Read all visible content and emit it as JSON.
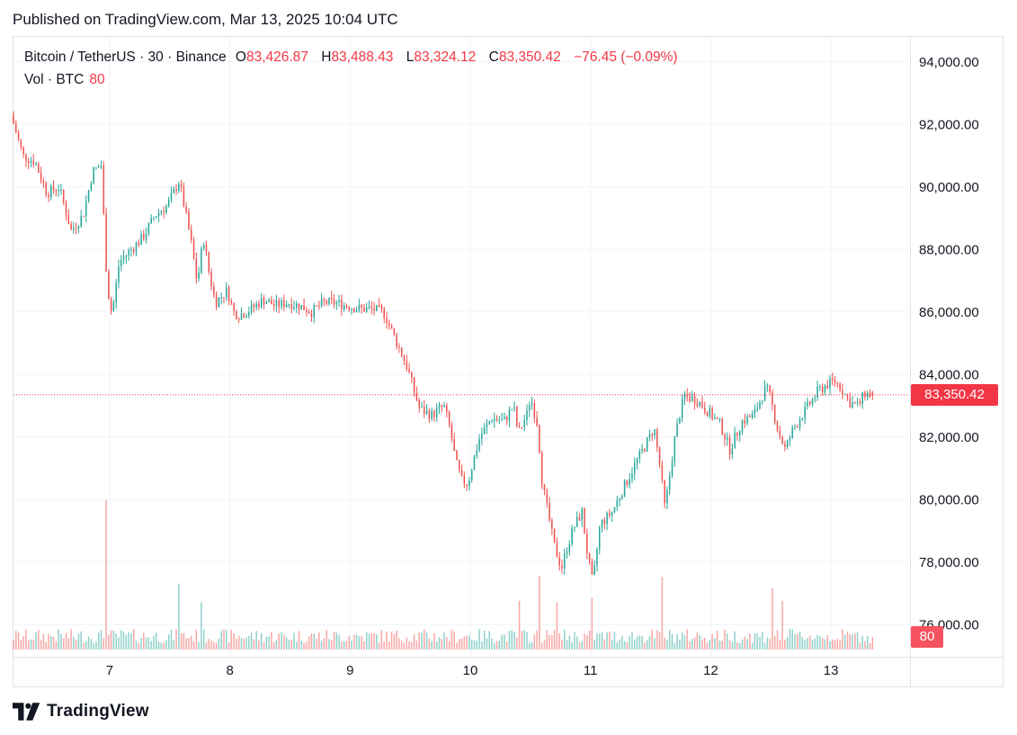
{
  "header": {
    "published": "Published on TradingView.com, Mar 13, 2025 10:04 UTC"
  },
  "legend": {
    "symbol": "Bitcoin / TetherUS · 30 · Binance",
    "o_label": "O",
    "o_value": "83,426.87",
    "h_label": "H",
    "h_value": "83,488.43",
    "l_label": "L",
    "l_value": "83,324.12",
    "c_label": "C",
    "c_value": "83,350.42",
    "change": "−76.45 (−0.09%)",
    "vol_label": "Vol · BTC",
    "vol_value": "80"
  },
  "badges": {
    "last_price": "83,350.42",
    "last_volume": "80"
  },
  "footer": {
    "brand": "TradingView"
  },
  "colors": {
    "up": "#26a69a",
    "down": "#ef5350",
    "last_price": "#f23645",
    "grid": "#f0f3fa"
  },
  "chart_data": {
    "type": "candlestick",
    "symbol": "Bitcoin / TetherUS",
    "interval": "30",
    "exchange": "Binance",
    "y_ticks": [
      76000,
      78000,
      80000,
      82000,
      84000,
      86000,
      88000,
      90000,
      92000,
      94000
    ],
    "y_tick_labels": [
      "76,000.00",
      "78,000.00",
      "80,000.00",
      "82,000.00",
      "84,000.00",
      "86,000.00",
      "88,000.00",
      "90,000.00",
      "92,000.00",
      "94,000.00"
    ],
    "ylim": [
      75000,
      94800
    ],
    "x_labels": [
      "7",
      "8",
      "9",
      "10",
      "11",
      "12",
      "13"
    ],
    "x_label_days": [
      7,
      8,
      9,
      10,
      11,
      12,
      13
    ],
    "x_range_days": [
      6.2,
      13.65
    ],
    "close_path": [
      [
        6.2,
        92300
      ],
      [
        6.3,
        91000
      ],
      [
        6.4,
        90800
      ],
      [
        6.5,
        89800
      ],
      [
        6.6,
        90000
      ],
      [
        6.7,
        88600
      ],
      [
        6.8,
        89100
      ],
      [
        6.88,
        90500
      ],
      [
        6.95,
        90700
      ],
      [
        7.0,
        86800
      ],
      [
        7.04,
        85900
      ],
      [
        7.1,
        87600
      ],
      [
        7.2,
        88000
      ],
      [
        7.3,
        88400
      ],
      [
        7.4,
        89100
      ],
      [
        7.5,
        89400
      ],
      [
        7.6,
        90200
      ],
      [
        7.66,
        89000
      ],
      [
        7.7,
        88200
      ],
      [
        7.75,
        86900
      ],
      [
        7.8,
        88400
      ],
      [
        7.85,
        87200
      ],
      [
        7.9,
        86300
      ],
      [
        8.0,
        86700
      ],
      [
        8.05,
        86000
      ],
      [
        8.1,
        85900
      ],
      [
        8.2,
        86100
      ],
      [
        8.3,
        86400
      ],
      [
        8.4,
        86200
      ],
      [
        8.5,
        86300
      ],
      [
        8.6,
        86200
      ],
      [
        8.7,
        86000
      ],
      [
        8.8,
        86300
      ],
      [
        8.9,
        86300
      ],
      [
        9.0,
        86200
      ],
      [
        9.1,
        86100
      ],
      [
        9.2,
        86100
      ],
      [
        9.3,
        86000
      ],
      [
        9.4,
        85100
      ],
      [
        9.5,
        84200
      ],
      [
        9.55,
        83500
      ],
      [
        9.6,
        82900
      ],
      [
        9.7,
        82700
      ],
      [
        9.8,
        83000
      ],
      [
        9.85,
        82300
      ],
      [
        9.9,
        81200
      ],
      [
        9.95,
        80600
      ],
      [
        10.0,
        80500
      ],
      [
        10.05,
        81300
      ],
      [
        10.1,
        82000
      ],
      [
        10.2,
        82600
      ],
      [
        10.3,
        82500
      ],
      [
        10.38,
        83000
      ],
      [
        10.42,
        82100
      ],
      [
        10.5,
        82800
      ],
      [
        10.52,
        83300
      ],
      [
        10.58,
        82400
      ],
      [
        10.62,
        80500
      ],
      [
        10.68,
        79300
      ],
      [
        10.72,
        78500
      ],
      [
        10.78,
        77800
      ],
      [
        10.82,
        78400
      ],
      [
        10.88,
        79100
      ],
      [
        10.95,
        79600
      ],
      [
        11.0,
        78100
      ],
      [
        11.04,
        77300
      ],
      [
        11.1,
        79200
      ],
      [
        11.2,
        79600
      ],
      [
        11.3,
        80400
      ],
      [
        11.4,
        81200
      ],
      [
        11.5,
        81900
      ],
      [
        11.55,
        82300
      ],
      [
        11.6,
        81000
      ],
      [
        11.64,
        79700
      ],
      [
        11.68,
        80800
      ],
      [
        11.72,
        81900
      ],
      [
        11.76,
        82700
      ],
      [
        11.8,
        83300
      ],
      [
        11.9,
        83200
      ],
      [
        12.0,
        82800
      ],
      [
        12.1,
        82400
      ],
      [
        12.18,
        81600
      ],
      [
        12.28,
        82500
      ],
      [
        12.38,
        82700
      ],
      [
        12.48,
        83600
      ],
      [
        12.52,
        83200
      ],
      [
        12.58,
        82200
      ],
      [
        12.64,
        81600
      ],
      [
        12.7,
        82200
      ],
      [
        12.78,
        82700
      ],
      [
        12.85,
        83100
      ],
      [
        12.92,
        83500
      ],
      [
        13.0,
        83700
      ],
      [
        13.05,
        83800
      ],
      [
        13.1,
        83600
      ],
      [
        13.18,
        83100
      ],
      [
        13.25,
        83000
      ],
      [
        13.3,
        83400
      ],
      [
        13.35,
        83350.42
      ]
    ],
    "volume_spikes": [
      {
        "day": 6.97,
        "volume": 950
      },
      {
        "day": 7.57,
        "volume": 420
      },
      {
        "day": 7.77,
        "volume": 300
      },
      {
        "day": 10.4,
        "volume": 310
      },
      {
        "day": 10.57,
        "volume": 470
      },
      {
        "day": 10.72,
        "volume": 300
      },
      {
        "day": 11.02,
        "volume": 330
      },
      {
        "day": 11.6,
        "volume": 460
      },
      {
        "day": 12.52,
        "volume": 390
      },
      {
        "day": 12.6,
        "volume": 310
      }
    ],
    "volume_scale_max": 1000,
    "last": {
      "open": 83426.87,
      "high": 83488.43,
      "low": 83324.12,
      "close": 83350.42,
      "volume": 80
    }
  }
}
